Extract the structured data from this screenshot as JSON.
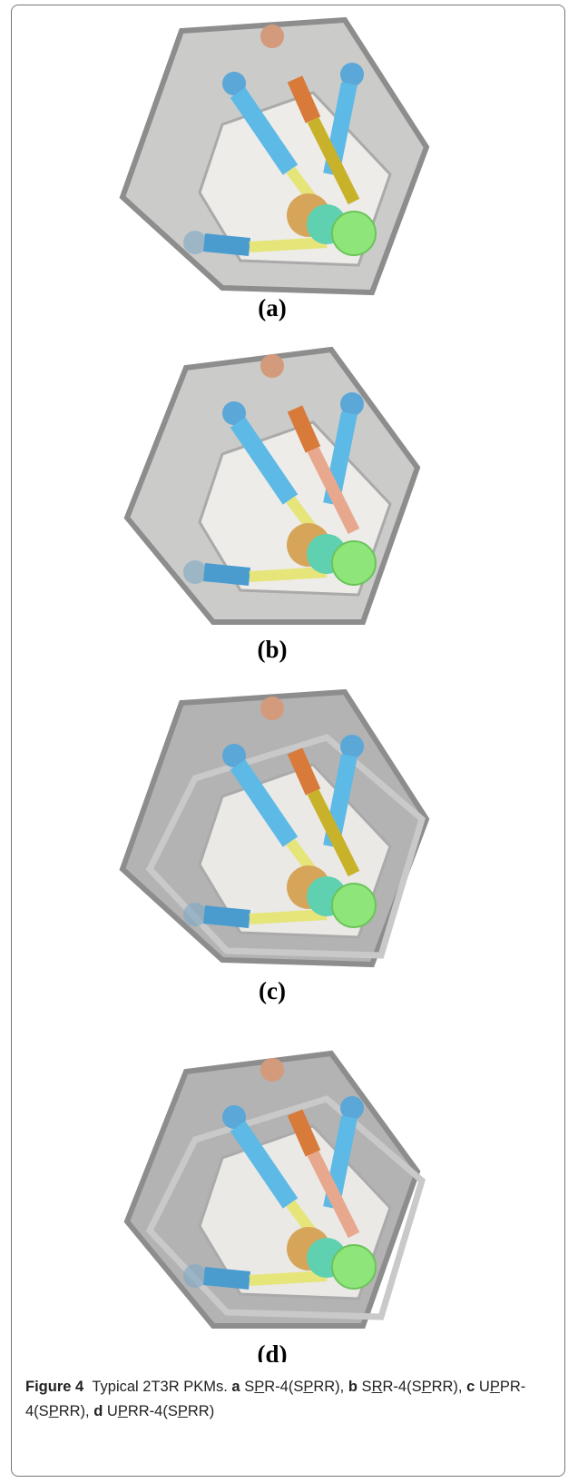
{
  "figure": {
    "panels": [
      "(a)",
      "(b)",
      "(c)",
      "(d)"
    ],
    "caption": {
      "label": "Figure 4",
      "text": "Typical 2T3R PKMs.",
      "items": [
        {
          "letter": "a",
          "parts": [
            "S",
            "P",
            "R-4(S",
            "P",
            "RR),"
          ]
        },
        {
          "letter": "b",
          "parts": [
            "S",
            "R",
            "R-4(S",
            "P",
            "RR),"
          ]
        },
        {
          "letter": "c",
          "parts": [
            "U",
            "P",
            "PR-4(S",
            "P",
            "RR),"
          ]
        },
        {
          "letter": "d",
          "parts": [
            "U",
            "P",
            "RR-4(S",
            "P",
            "RR)"
          ]
        }
      ]
    }
  }
}
